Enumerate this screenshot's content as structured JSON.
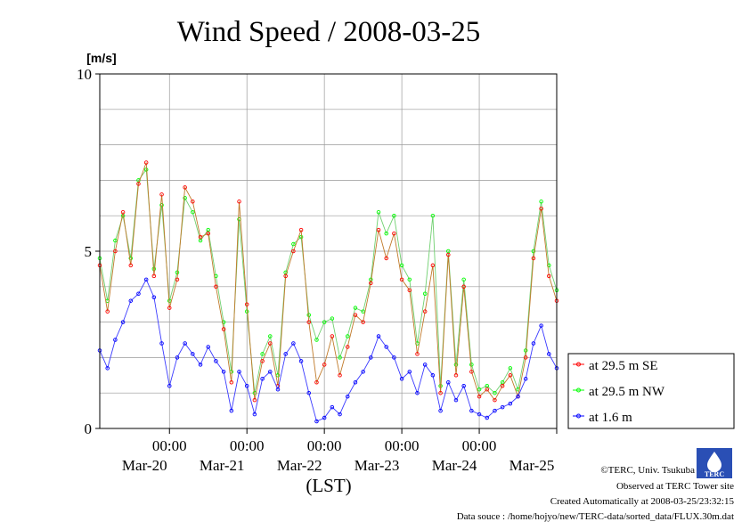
{
  "credits": {
    "copyright": "©TERC, Univ. Tsukuba",
    "observed": "Observed at TERC Tower site",
    "created": "Created Automatically at 2008-03-25/23:32:15",
    "source": "Data souce : /home/hojyo/new/TERC-data/sorted_data/FLUX.30m.dat"
  },
  "logo": {
    "text": "TERC",
    "color": "#2a4fb5"
  },
  "chart_data": {
    "type": "line",
    "title": "Wind Speed / 2008-03-25",
    "ylabel": "[m/s]",
    "xlabel": "(LST)",
    "ylim": [
      0,
      10
    ],
    "xlim": [
      -4.9,
      1.0
    ],
    "y_ticks": [
      0,
      5,
      10
    ],
    "x_ticks": [
      {
        "pos": -4.0,
        "time": "00:00",
        "date": "Mar-20"
      },
      {
        "pos": -3.0,
        "time": "00:00",
        "date": "Mar-21"
      },
      {
        "pos": -2.0,
        "time": "00:00",
        "date": "Mar-22"
      },
      {
        "pos": -1.0,
        "time": "00:00",
        "date": "Mar-23"
      },
      {
        "pos": 0.0,
        "time": "00:00",
        "date": "Mar-24"
      },
      {
        "pos": 1.0,
        "time": "",
        "date": "Mar-25"
      }
    ],
    "grid": true,
    "legend_position": "right-bottom",
    "series": [
      {
        "name": "at 29.5 m SE",
        "color": "#ff0000",
        "x": [
          -4.9,
          -4.8,
          -4.7,
          -4.6,
          -4.5,
          -4.4,
          -4.3,
          -4.2,
          -4.1,
          -4.0,
          -3.9,
          -3.8,
          -3.7,
          -3.6,
          -3.5,
          -3.4,
          -3.3,
          -3.2,
          -3.1,
          -3.0,
          -2.9,
          -2.8,
          -2.7,
          -2.6,
          -2.5,
          -2.4,
          -2.3,
          -2.2,
          -2.1,
          -2.0,
          -1.9,
          -1.8,
          -1.7,
          -1.6,
          -1.5,
          -1.4,
          -1.3,
          -1.2,
          -1.1,
          -1.0,
          -0.9,
          -0.8,
          -0.7,
          -0.6,
          -0.5,
          -0.4,
          -0.3,
          -0.2,
          -0.1,
          0.0,
          0.1,
          0.2,
          0.3,
          0.4,
          0.5,
          0.6,
          0.7,
          0.8,
          0.9,
          1.0
        ],
        "y": [
          4.6,
          3.3,
          5.0,
          6.1,
          4.6,
          6.9,
          7.5,
          4.3,
          6.6,
          3.4,
          4.2,
          6.8,
          6.4,
          5.4,
          5.5,
          4.0,
          2.8,
          1.3,
          6.4,
          3.5,
          0.8,
          1.9,
          2.4,
          1.2,
          4.3,
          5.0,
          5.6,
          3.0,
          1.3,
          1.8,
          2.6,
          1.5,
          2.3,
          3.2,
          3.0,
          4.1,
          5.6,
          4.8,
          5.5,
          4.2,
          3.9,
          2.1,
          3.3,
          4.6,
          1.0,
          4.9,
          1.5,
          4.0,
          1.6,
          0.9,
          1.1,
          0.8,
          1.2,
          1.5,
          0.9,
          2.0,
          4.8,
          6.2,
          4.3,
          3.6
        ]
      },
      {
        "name": "at 29.5 m NW",
        "color": "#00ff00",
        "x": [
          -4.9,
          -4.8,
          -4.7,
          -4.6,
          -4.5,
          -4.4,
          -4.3,
          -4.2,
          -4.1,
          -4.0,
          -3.9,
          -3.8,
          -3.7,
          -3.6,
          -3.5,
          -3.4,
          -3.3,
          -3.2,
          -3.1,
          -3.0,
          -2.9,
          -2.8,
          -2.7,
          -2.6,
          -2.5,
          -2.4,
          -2.3,
          -2.2,
          -2.1,
          -2.0,
          -1.9,
          -1.8,
          -1.7,
          -1.6,
          -1.5,
          -1.4,
          -1.3,
          -1.2,
          -1.1,
          -1.0,
          -0.9,
          -0.8,
          -0.7,
          -0.6,
          -0.5,
          -0.4,
          -0.3,
          -0.2,
          -0.1,
          0.0,
          0.1,
          0.2,
          0.3,
          0.4,
          0.5,
          0.6,
          0.7,
          0.8,
          0.9,
          1.0
        ],
        "y": [
          4.8,
          3.6,
          5.3,
          6.0,
          4.8,
          7.0,
          7.3,
          4.5,
          6.3,
          3.6,
          4.4,
          6.5,
          6.1,
          5.3,
          5.6,
          4.3,
          3.0,
          1.6,
          5.9,
          3.3,
          1.0,
          2.1,
          2.6,
          1.5,
          4.4,
          5.2,
          5.4,
          3.2,
          2.5,
          3.0,
          3.1,
          2.0,
          2.6,
          3.4,
          3.3,
          4.2,
          6.1,
          5.5,
          6.0,
          4.6,
          4.2,
          2.4,
          3.8,
          6.0,
          1.2,
          5.0,
          1.8,
          4.2,
          1.8,
          1.1,
          1.2,
          1.0,
          1.3,
          1.7,
          1.1,
          2.2,
          5.0,
          6.4,
          4.6,
          3.9
        ]
      },
      {
        "name": "at 1.6 m",
        "color": "#0000ff",
        "x": [
          -4.9,
          -4.8,
          -4.7,
          -4.6,
          -4.5,
          -4.4,
          -4.3,
          -4.2,
          -4.1,
          -4.0,
          -3.9,
          -3.8,
          -3.7,
          -3.6,
          -3.5,
          -3.4,
          -3.3,
          -3.2,
          -3.1,
          -3.0,
          -2.9,
          -2.8,
          -2.7,
          -2.6,
          -2.5,
          -2.4,
          -2.3,
          -2.2,
          -2.1,
          -2.0,
          -1.9,
          -1.8,
          -1.7,
          -1.6,
          -1.5,
          -1.4,
          -1.3,
          -1.2,
          -1.1,
          -1.0,
          -0.9,
          -0.8,
          -0.7,
          -0.6,
          -0.5,
          -0.4,
          -0.3,
          -0.2,
          -0.1,
          0.0,
          0.1,
          0.2,
          0.3,
          0.4,
          0.5,
          0.6,
          0.7,
          0.8,
          0.9,
          1.0
        ],
        "y": [
          2.2,
          1.7,
          2.5,
          3.0,
          3.6,
          3.8,
          4.2,
          3.7,
          2.4,
          1.2,
          2.0,
          2.4,
          2.1,
          1.8,
          2.3,
          1.9,
          1.6,
          0.5,
          1.6,
          1.2,
          0.4,
          1.4,
          1.6,
          1.1,
          2.1,
          2.4,
          1.9,
          1.0,
          0.2,
          0.3,
          0.6,
          0.4,
          0.9,
          1.3,
          1.6,
          2.0,
          2.6,
          2.3,
          2.0,
          1.4,
          1.6,
          1.0,
          1.8,
          1.5,
          0.5,
          1.3,
          0.8,
          1.2,
          0.5,
          0.4,
          0.3,
          0.5,
          0.6,
          0.7,
          0.9,
          1.4,
          2.4,
          2.9,
          2.1,
          1.7
        ]
      }
    ]
  }
}
